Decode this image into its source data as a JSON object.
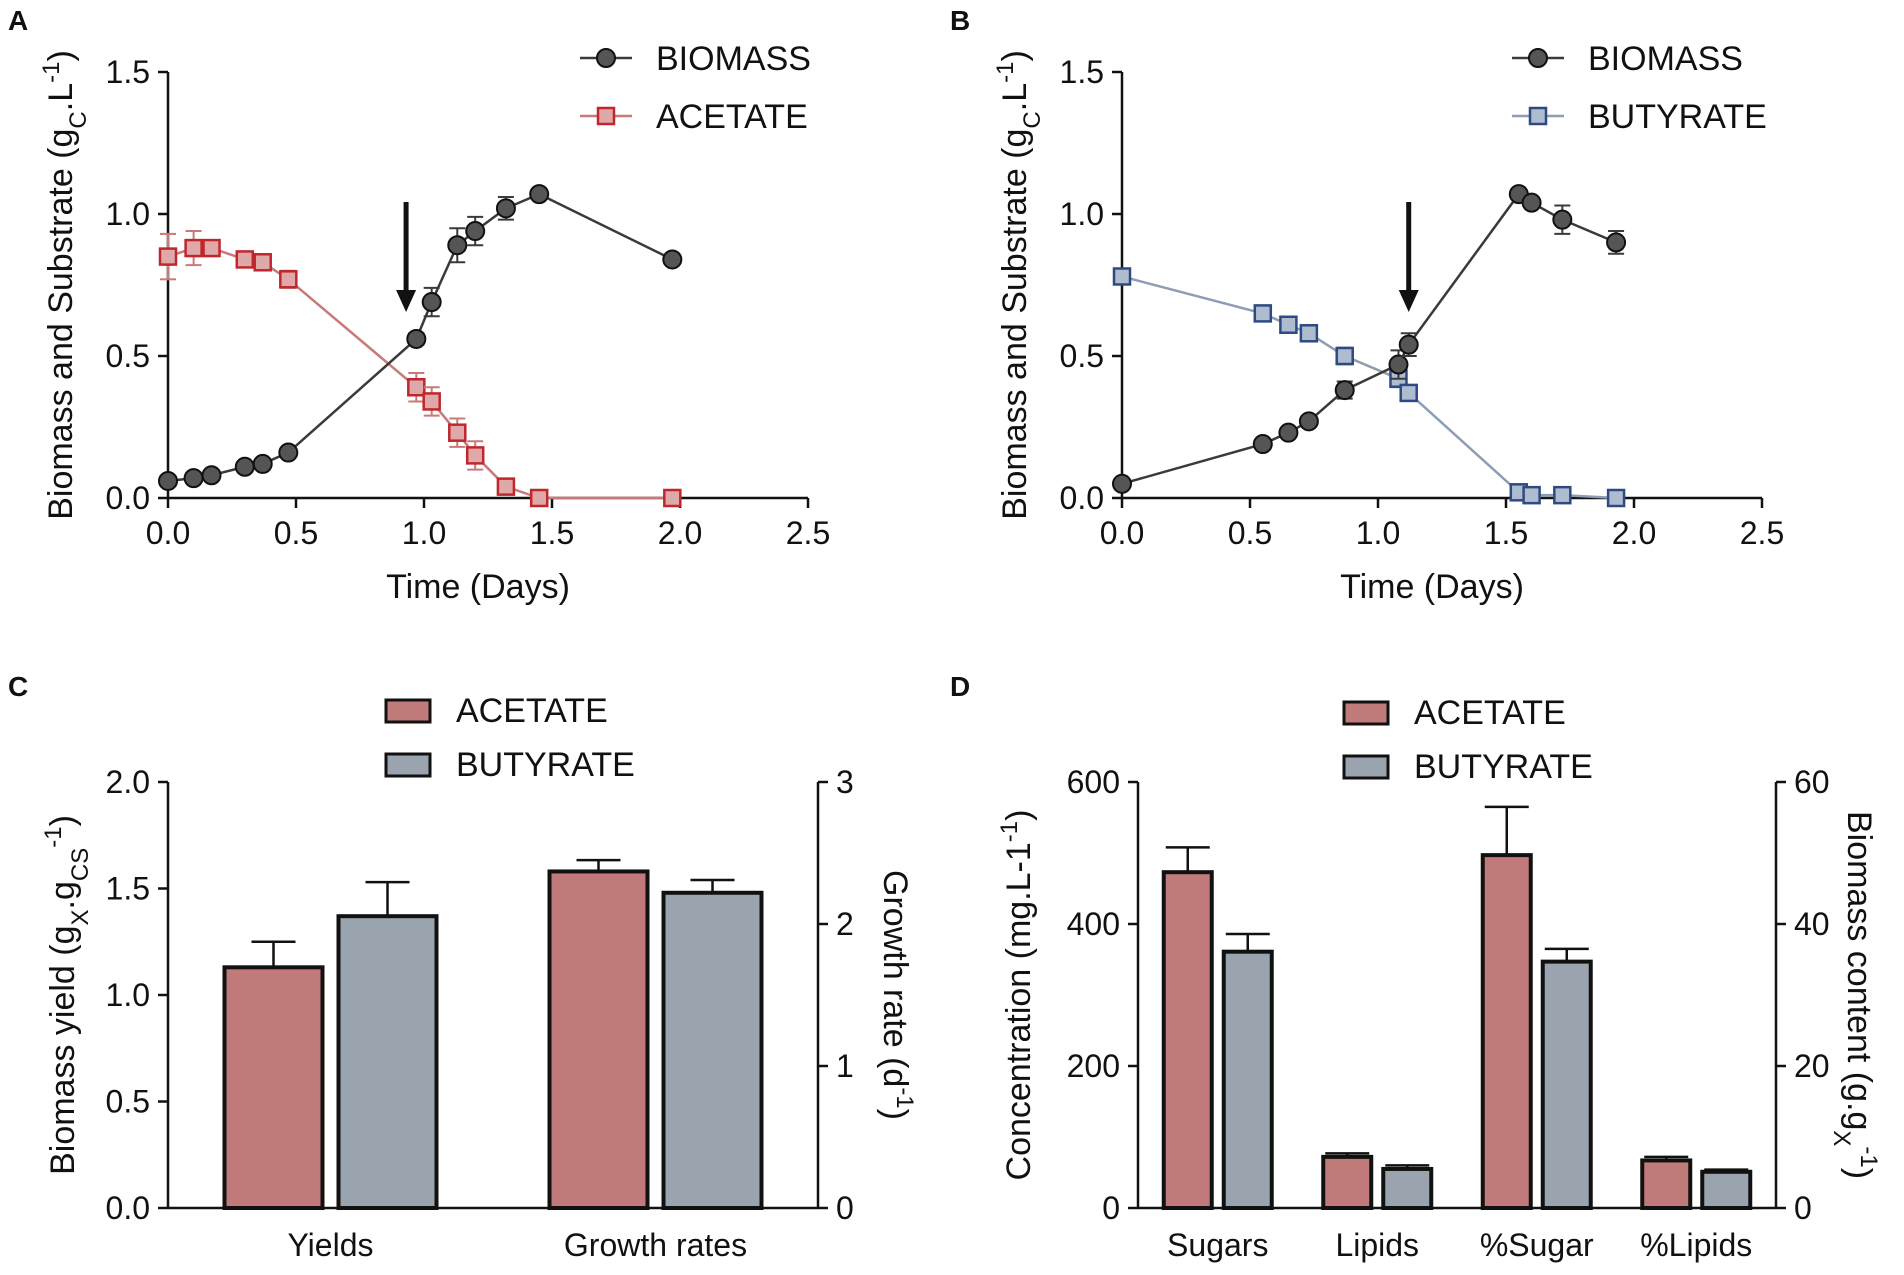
{
  "colors": {
    "biomass": "#3a3a3a",
    "acetate_edge": "#c0262b",
    "acetate_fill": "#e0a9a9",
    "acetate_line": "#c9797a",
    "butyrate_edge": "#2f4a82",
    "butyrate_fill": "#aebcd0",
    "butyrate_line": "#8d9db4",
    "bar_acetate": "#c07a7a",
    "bar_butyrate": "#9aa4ae",
    "axis": "#111111"
  },
  "chart_data": [
    {
      "panel": "A",
      "type": "line",
      "xlabel": "Time (Days)",
      "ylabel_main": "Biomass and Substrate (g",
      "ylabel_sub": "C",
      "ylabel_mid": ".L",
      "ylabel_sup": "-1",
      "ylabel_end": ")",
      "xlim": [
        0,
        2.5
      ],
      "ylim": [
        0,
        1.5
      ],
      "xticks": [
        "0.0",
        "0.5",
        "1.0",
        "1.5",
        "2.0",
        "2.5"
      ],
      "yticks": [
        "0.0",
        "0.5",
        "1.0",
        "1.5"
      ],
      "arrow_x": 0.93,
      "series": [
        {
          "name": "BIOMASS",
          "marker": "circle",
          "x": [
            0.0,
            0.1,
            0.17,
            0.3,
            0.37,
            0.47,
            0.97,
            1.03,
            1.13,
            1.2,
            1.32,
            1.45,
            1.97
          ],
          "y": [
            0.06,
            0.07,
            0.08,
            0.11,
            0.12,
            0.16,
            0.56,
            0.69,
            0.89,
            0.94,
            1.02,
            1.07,
            0.84
          ],
          "err": [
            0.0,
            0.0,
            0.0,
            0.0,
            0.0,
            0.0,
            0.02,
            0.05,
            0.06,
            0.05,
            0.04,
            0.0,
            0.0
          ]
        },
        {
          "name": "ACETATE",
          "marker": "square",
          "x": [
            0.0,
            0.1,
            0.17,
            0.3,
            0.37,
            0.47,
            0.97,
            1.03,
            1.13,
            1.2,
            1.32,
            1.45,
            1.97
          ],
          "y": [
            0.85,
            0.88,
            0.88,
            0.84,
            0.83,
            0.77,
            0.39,
            0.34,
            0.23,
            0.15,
            0.04,
            0.0,
            0.0
          ],
          "err": [
            0.08,
            0.06,
            0.02,
            0.02,
            0.0,
            0.03,
            0.05,
            0.05,
            0.05,
            0.05,
            0.0,
            0.0,
            0.0
          ]
        }
      ]
    },
    {
      "panel": "B",
      "type": "line",
      "xlabel": "Time (Days)",
      "ylabel_main": "Biomass and Substrate (g",
      "ylabel_sub": "C",
      "ylabel_mid": ".L",
      "ylabel_sup": "-1",
      "ylabel_end": ")",
      "xlim": [
        0,
        2.5
      ],
      "ylim": [
        0,
        1.5
      ],
      "xticks": [
        "0.0",
        "0.5",
        "1.0",
        "1.5",
        "2.0",
        "2.5"
      ],
      "yticks": [
        "0.0",
        "0.5",
        "1.0",
        "1.5"
      ],
      "arrow_x": 1.12,
      "series": [
        {
          "name": "BIOMASS",
          "marker": "circle",
          "x": [
            0.0,
            0.55,
            0.65,
            0.73,
            0.87,
            1.08,
            1.12,
            1.55,
            1.6,
            1.72,
            1.93
          ],
          "y": [
            0.05,
            0.19,
            0.23,
            0.27,
            0.38,
            0.47,
            0.54,
            1.07,
            1.04,
            0.98,
            0.9
          ],
          "err": [
            0.0,
            0.0,
            0.0,
            0.0,
            0.03,
            0.05,
            0.04,
            0.0,
            0.0,
            0.05,
            0.04
          ]
        },
        {
          "name": "BUTYRATE",
          "marker": "square",
          "x": [
            0.0,
            0.55,
            0.65,
            0.73,
            0.87,
            1.08,
            1.12,
            1.55,
            1.6,
            1.72,
            1.93
          ],
          "y": [
            0.78,
            0.65,
            0.61,
            0.58,
            0.5,
            0.42,
            0.37,
            0.02,
            0.01,
            0.01,
            0.0
          ],
          "err": [
            0.0,
            0.0,
            0.0,
            0.0,
            0.03,
            0.03,
            0.0,
            0.0,
            0.0,
            0.0,
            0.0
          ]
        }
      ]
    },
    {
      "panel": "C",
      "type": "bar",
      "categories": [
        "Yields",
        "Growth rates"
      ],
      "ylabel_left": {
        "p1": "Biomass yield (g",
        "s1": "X",
        "p2": ".g",
        "s2": "CS",
        "p3": "",
        "sup": "-1",
        "p4": ")"
      },
      "ylabel_right": {
        "p1": "Growth rate (d",
        "sup": "-1",
        "p2": ")"
      },
      "ylim_left": [
        0,
        2.0
      ],
      "ylim_right": [
        0,
        3
      ],
      "yticks_left": [
        "0.0",
        "0.5",
        "1.0",
        "1.5",
        "2.0"
      ],
      "yticks_right": [
        "0",
        "1",
        "2",
        "3"
      ],
      "series": [
        {
          "name": "ACETATE",
          "values": [
            1.13,
            2.37
          ],
          "err": [
            0.12,
            0.08
          ],
          "axis": [
            "left",
            "right"
          ]
        },
        {
          "name": "BUTYRATE",
          "values": [
            1.37,
            2.22
          ],
          "err": [
            0.16,
            0.09
          ],
          "axis": [
            "left",
            "right"
          ]
        }
      ]
    },
    {
      "panel": "D",
      "type": "bar",
      "categories": [
        "Sugars",
        "Lipids",
        "%Sugar",
        "%Lipids"
      ],
      "ylabel_left": {
        "p1": "Concentration (mg.L",
        "sup": "-1",
        "p2": ")"
      },
      "ylabel_right": {
        "p1": "Biomass content (g.g",
        "sub": "X",
        "sup": "-1",
        "p2": ")"
      },
      "ylim_left": [
        0,
        600
      ],
      "ylim_right": [
        0,
        60
      ],
      "yticks_left": [
        "0",
        "200",
        "400",
        "600"
      ],
      "yticks_right": [
        "0",
        "20",
        "40",
        "60"
      ],
      "series": [
        {
          "name": "ACETATE",
          "values": [
            473,
            72,
            49.7,
            6.7
          ],
          "err": [
            35,
            5,
            6.8,
            0.5
          ],
          "axis": [
            "left",
            "left",
            "right",
            "right"
          ]
        },
        {
          "name": "BUTYRATE",
          "values": [
            361,
            55,
            34.7,
            5.1
          ],
          "err": [
            25,
            5,
            1.8,
            0.3
          ],
          "axis": [
            "left",
            "left",
            "right",
            "right"
          ]
        }
      ]
    }
  ]
}
